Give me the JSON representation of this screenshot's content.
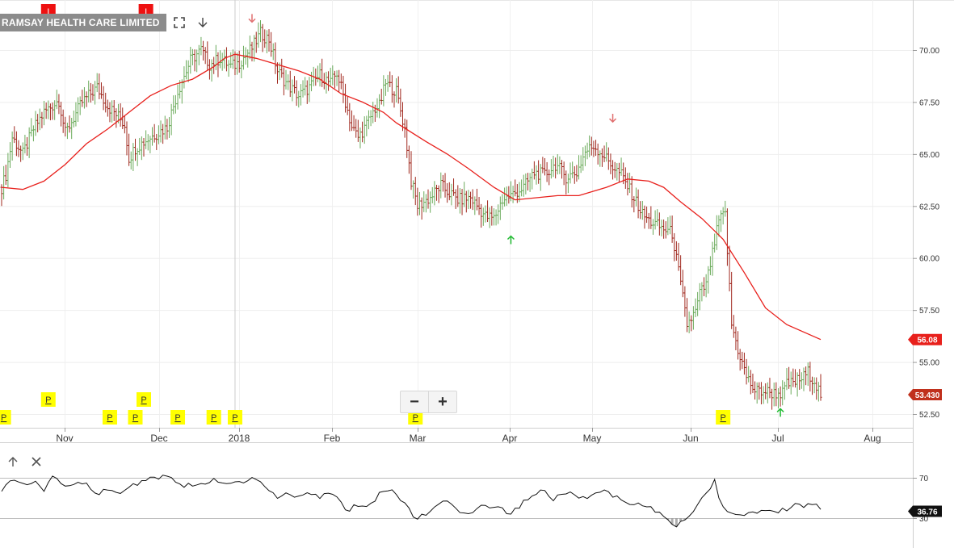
{
  "header": {
    "title": "RAMSAY HEALTH CARE LIMITED"
  },
  "toolbar": {
    "fullscreen_icon": "fullscreen-icon",
    "download_icon": "down-arrow-icon"
  },
  "indicator_panel": {
    "up_icon": "arrow-up-icon",
    "close_icon": "close-icon"
  },
  "zoom": {
    "minus_label": "−",
    "plus_label": "+"
  },
  "colors": {
    "up_bar": "#6aaa5a",
    "down_bar": "#a0281e",
    "moving_average": "#e8201c",
    "rsi_line": "#111111",
    "last_price_badge": "#c0301c",
    "ma_badge": "#e8201c",
    "marker_yellow": "#ffff00",
    "marker_red": "#ee1111"
  },
  "chart_data": {
    "type": "line",
    "price_panel": {
      "y_ticks": [
        "52.50",
        "55.00",
        "57.50",
        "60.00",
        "62.50",
        "65.00",
        "67.50",
        "70.00"
      ],
      "ylim": [
        52.0,
        72.6
      ],
      "x_ticks": [
        "Nov",
        "Dec",
        "2018",
        "Feb",
        "Mar",
        "Apr",
        "May",
        "Jun",
        "Jul",
        "Aug"
      ],
      "last_price_label": "53.430",
      "ma_label": "56.08",
      "bars_anchors": [
        [
          0,
          63.4
        ],
        [
          2,
          64.0
        ],
        [
          5,
          65.8
        ],
        [
          10,
          65.0
        ],
        [
          15,
          66.2
        ],
        [
          20,
          67.0
        ],
        [
          27,
          67.6
        ],
        [
          30,
          66.0
        ],
        [
          38,
          67.5
        ],
        [
          45,
          68.2
        ],
        [
          50,
          67.3
        ],
        [
          55,
          66.8
        ],
        [
          58,
          66.4
        ],
        [
          60,
          64.8
        ],
        [
          63,
          65.3
        ],
        [
          70,
          65.8
        ],
        [
          78,
          66.3
        ],
        [
          83,
          68.0
        ],
        [
          89,
          69.5
        ],
        [
          94,
          70.0
        ],
        [
          98,
          69.3
        ],
        [
          103,
          69.6
        ],
        [
          108,
          69.2
        ],
        [
          112,
          69.4
        ],
        [
          118,
          70.1
        ],
        [
          122,
          70.8
        ],
        [
          126,
          70.5
        ],
        [
          130,
          69.0
        ],
        [
          135,
          68.3
        ],
        [
          140,
          67.8
        ],
        [
          145,
          68.2
        ],
        [
          150,
          68.8
        ],
        [
          155,
          68.4
        ],
        [
          158,
          68.9
        ],
        [
          162,
          67.5
        ],
        [
          165,
          66.3
        ],
        [
          168,
          65.8
        ],
        [
          172,
          66.4
        ],
        [
          176,
          67.2
        ],
        [
          178,
          67.3
        ],
        [
          181,
          68.4
        ],
        [
          186,
          68.0
        ],
        [
          190,
          66.2
        ],
        [
          193,
          63.7
        ],
        [
          196,
          62.5
        ],
        [
          202,
          62.9
        ],
        [
          207,
          63.5
        ],
        [
          210,
          63.2
        ],
        [
          215,
          62.8
        ],
        [
          221,
          62.9
        ],
        [
          228,
          62.0
        ],
        [
          232,
          61.9
        ],
        [
          236,
          62.8
        ],
        [
          240,
          63.0
        ],
        [
          246,
          63.4
        ],
        [
          251,
          64.1
        ],
        [
          256,
          64.0
        ],
        [
          261,
          64.5
        ],
        [
          266,
          63.9
        ],
        [
          271,
          64.1
        ],
        [
          275,
          65.1
        ],
        [
          279,
          65.4
        ],
        [
          284,
          64.9
        ],
        [
          288,
          64.4
        ],
        [
          292,
          64.0
        ],
        [
          298,
          62.9
        ],
        [
          302,
          62.1
        ],
        [
          305,
          61.8
        ],
        [
          310,
          61.5
        ],
        [
          316,
          61.2
        ],
        [
          320,
          58.7
        ],
        [
          323,
          56.8
        ],
        [
          327,
          57.4
        ],
        [
          329,
          58.3
        ],
        [
          332,
          58.7
        ],
        [
          335,
          60.2
        ],
        [
          338,
          61.8
        ],
        [
          341,
          62.1
        ],
        [
          344,
          56.8
        ],
        [
          347,
          55.6
        ],
        [
          351,
          54.3
        ],
        [
          355,
          53.6
        ],
        [
          359,
          53.6
        ],
        [
          364,
          53.5
        ],
        [
          368,
          53.5
        ],
        [
          370,
          53.9
        ],
        [
          373,
          54.0
        ],
        [
          377,
          54.2
        ],
        [
          380,
          54.5
        ],
        [
          383,
          54.1
        ],
        [
          386,
          53.43
        ]
      ],
      "bars_n": 387,
      "moving_average": [
        [
          0,
          63.4
        ],
        [
          10,
          63.3
        ],
        [
          20,
          63.7
        ],
        [
          30,
          64.5
        ],
        [
          40,
          65.5
        ],
        [
          50,
          66.2
        ],
        [
          60,
          67.0
        ],
        [
          70,
          67.8
        ],
        [
          80,
          68.3
        ],
        [
          90,
          68.6
        ],
        [
          100,
          69.2
        ],
        [
          105,
          69.6
        ],
        [
          110,
          69.8
        ],
        [
          120,
          69.6
        ],
        [
          130,
          69.3
        ],
        [
          140,
          69.0
        ],
        [
          150,
          68.6
        ],
        [
          160,
          67.9
        ],
        [
          170,
          67.5
        ],
        [
          180,
          67.0
        ],
        [
          186,
          66.5
        ],
        [
          200,
          65.6
        ],
        [
          210,
          65.0
        ],
        [
          220,
          64.3
        ],
        [
          232,
          63.4
        ],
        [
          242,
          62.8
        ],
        [
          252,
          62.9
        ],
        [
          262,
          63.0
        ],
        [
          272,
          63.0
        ],
        [
          285,
          63.4
        ],
        [
          295,
          63.8
        ],
        [
          305,
          63.7
        ],
        [
          312,
          63.4
        ],
        [
          320,
          62.7
        ],
        [
          330,
          61.9
        ],
        [
          340,
          60.9
        ],
        [
          350,
          59.3
        ],
        [
          360,
          57.6
        ],
        [
          370,
          56.8
        ],
        [
          386,
          56.08
        ]
      ],
      "arrows_down": [
        [
          118,
          71.5
        ],
        [
          288,
          66.7
        ]
      ],
      "arrows_up": [
        [
          240,
          60.9
        ],
        [
          367,
          52.6
        ]
      ],
      "markers": [
        {
          "kind": "P",
          "bar": 1,
          "row": "bottom"
        },
        {
          "kind": "P",
          "bar": 22,
          "row": "top"
        },
        {
          "kind": "P",
          "bar": 51,
          "row": "bottom"
        },
        {
          "kind": "P",
          "bar": 63,
          "row": "bottom"
        },
        {
          "kind": "P",
          "bar": 67,
          "row": "top"
        },
        {
          "kind": "P",
          "bar": 83,
          "row": "bottom"
        },
        {
          "kind": "P",
          "bar": 100,
          "row": "bottom"
        },
        {
          "kind": "P",
          "bar": 110,
          "row": "bottom"
        },
        {
          "kind": "P",
          "bar": 195,
          "row": "bottom"
        },
        {
          "kind": "P",
          "bar": 340,
          "row": "bottom"
        },
        {
          "kind": "I",
          "bar": 22,
          "row": "header"
        },
        {
          "kind": "I",
          "bar": 68,
          "row": "header"
        }
      ],
      "crosshair_bar": 110
    },
    "indicator_panel": {
      "y_ticks": [
        "70",
        "30"
      ],
      "ylim": [
        5,
        95
      ],
      "last_value_label": "36.76",
      "values_anchors": [
        [
          0,
          59
        ],
        [
          5,
          70
        ],
        [
          10,
          65
        ],
        [
          15,
          66
        ],
        [
          20,
          58
        ],
        [
          25,
          72
        ],
        [
          30,
          63
        ],
        [
          35,
          66
        ],
        [
          40,
          65
        ],
        [
          45,
          55
        ],
        [
          50,
          58
        ],
        [
          55,
          54
        ],
        [
          60,
          60
        ],
        [
          65,
          65
        ],
        [
          70,
          70
        ],
        [
          75,
          71
        ],
        [
          80,
          69
        ],
        [
          85,
          63
        ],
        [
          90,
          63
        ],
        [
          95,
          64
        ],
        [
          100,
          67
        ],
        [
          105,
          64
        ],
        [
          110,
          65
        ],
        [
          115,
          67
        ],
        [
          120,
          69
        ],
        [
          125,
          60
        ],
        [
          130,
          52
        ],
        [
          135,
          54
        ],
        [
          140,
          50
        ],
        [
          145,
          57
        ],
        [
          150,
          50
        ],
        [
          155,
          55
        ],
        [
          160,
          45
        ],
        [
          163,
          34
        ],
        [
          166,
          43
        ],
        [
          170,
          42
        ],
        [
          175,
          46
        ],
        [
          180,
          58
        ],
        [
          185,
          57
        ],
        [
          190,
          45
        ],
        [
          193,
          34
        ],
        [
          196,
          30
        ],
        [
          200,
          35
        ],
        [
          205,
          45
        ],
        [
          210,
          45
        ],
        [
          215,
          36
        ],
        [
          220,
          34
        ],
        [
          225,
          42
        ],
        [
          230,
          40
        ],
        [
          235,
          39
        ],
        [
          240,
          34
        ],
        [
          245,
          44
        ],
        [
          250,
          52
        ],
        [
          255,
          58
        ],
        [
          260,
          49
        ],
        [
          265,
          56
        ],
        [
          270,
          55
        ],
        [
          275,
          48
        ],
        [
          280,
          56
        ],
        [
          285,
          60
        ],
        [
          288,
          52
        ],
        [
          292,
          50
        ],
        [
          297,
          40
        ],
        [
          300,
          47
        ],
        [
          305,
          40
        ],
        [
          310,
          36
        ],
        [
          315,
          27
        ],
        [
          318,
          20
        ],
        [
          322,
          30
        ],
        [
          325,
          31
        ],
        [
          328,
          45
        ],
        [
          332,
          55
        ],
        [
          336,
          67
        ],
        [
          339,
          45
        ],
        [
          344,
          35
        ],
        [
          348,
          33
        ],
        [
          352,
          35
        ],
        [
          358,
          38
        ],
        [
          364,
          36
        ],
        [
          369,
          38
        ],
        [
          375,
          43
        ],
        [
          381,
          42
        ],
        [
          384,
          44
        ],
        [
          386,
          36.76
        ]
      ]
    }
  }
}
